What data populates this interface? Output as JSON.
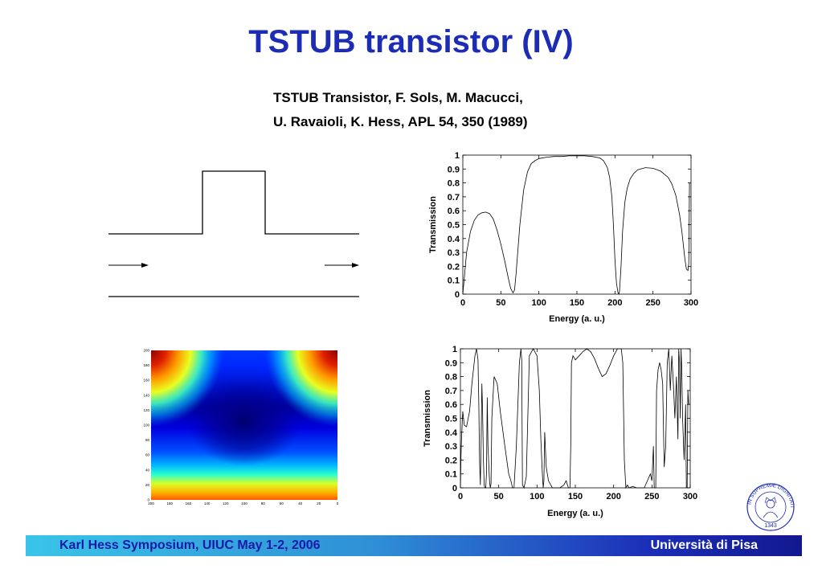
{
  "slide": {
    "title": "TSTUB transistor (IV)",
    "citation_line1": "TSTUB Transistor, F. Sols, M. Macucci,",
    "citation_line2": "U. Ravaioli, K. Hess, APL 54, 350 (1989)"
  },
  "chart_data": [
    {
      "type": "line",
      "title": "",
      "xlabel": "Energy  (a. u.)",
      "ylabel": "Transmission",
      "xlim": [
        0,
        300
      ],
      "ylim": [
        0,
        1
      ],
      "xticks": [
        "0",
        "50",
        "100",
        "150",
        "200",
        "250",
        "300"
      ],
      "yticks": [
        "0",
        "0.1",
        "0.2",
        "0.3",
        "0.4",
        "0.5",
        "0.6",
        "0.7",
        "0.8",
        "0.9",
        "1"
      ],
      "series": [
        {
          "x": [
            0,
            5,
            10,
            15,
            20,
            25,
            30,
            35,
            40,
            45,
            50,
            55,
            60,
            63,
            66,
            68,
            70,
            75,
            80,
            85,
            90,
            95,
            100,
            110,
            120,
            130,
            140,
            150,
            160,
            170,
            180,
            185,
            190,
            193,
            196,
            198,
            200,
            202,
            204,
            205,
            206,
            208,
            210,
            213,
            216,
            220,
            225,
            230,
            240,
            250,
            260,
            270,
            275,
            280,
            285,
            288,
            290,
            292,
            294,
            296,
            297,
            298
          ],
          "y": [
            0.0,
            0.3,
            0.45,
            0.53,
            0.57,
            0.585,
            0.59,
            0.58,
            0.54,
            0.46,
            0.36,
            0.24,
            0.11,
            0.04,
            0.01,
            0.03,
            0.15,
            0.5,
            0.75,
            0.88,
            0.94,
            0.96,
            0.975,
            0.985,
            0.99,
            0.99,
            0.995,
            0.995,
            0.995,
            0.99,
            0.98,
            0.96,
            0.91,
            0.84,
            0.7,
            0.5,
            0.25,
            0.08,
            0.01,
            0.0,
            0.02,
            0.2,
            0.45,
            0.66,
            0.76,
            0.83,
            0.87,
            0.895,
            0.91,
            0.905,
            0.885,
            0.84,
            0.79,
            0.71,
            0.57,
            0.45,
            0.35,
            0.25,
            0.18,
            0.17,
            0.22,
            0.8
          ]
        }
      ]
    },
    {
      "type": "line",
      "title": "",
      "xlabel": "Energy (a. u.)",
      "ylabel": "Transmission",
      "xlim": [
        0,
        300
      ],
      "ylim": [
        0,
        1
      ],
      "xticks": [
        "0",
        "50",
        "100",
        "150",
        "200",
        "250",
        "300"
      ],
      "yticks": [
        "0",
        "0.1",
        "0.2",
        "0.3",
        "0.4",
        "0.5",
        "0.6",
        "0.7",
        "0.8",
        "0.9",
        "1"
      ],
      "series": [
        {
          "x": [
            0,
            1,
            3,
            5,
            8,
            12,
            15,
            17,
            19,
            21,
            23,
            24,
            25,
            26,
            27,
            28,
            29,
            30,
            31,
            32,
            33,
            34,
            35,
            36,
            38,
            39,
            40,
            41,
            44,
            48,
            52,
            58,
            63,
            66,
            68,
            70,
            73,
            77,
            79,
            80,
            81,
            83,
            86,
            90,
            95,
            100,
            103,
            105,
            107,
            108,
            109,
            110,
            112,
            115,
            120,
            125,
            130,
            135,
            138,
            141,
            143,
            144,
            145,
            147,
            150,
            155,
            160,
            165,
            170,
            175,
            180,
            185,
            190,
            195,
            200,
            205,
            210,
            212,
            214,
            216,
            218,
            220,
            225,
            230,
            240,
            248,
            250,
            252,
            253,
            255,
            256,
            258,
            260,
            262,
            264,
            266,
            268,
            270,
            272,
            274,
            276,
            278,
            280,
            282,
            284,
            285,
            286,
            287,
            288,
            289,
            290,
            292,
            294,
            295,
            296,
            297,
            298
          ],
          "y": [
            0.0,
            0.3,
            0.55,
            0.45,
            0.44,
            0.55,
            0.75,
            0.85,
            0.95,
            1.0,
            0.92,
            0.6,
            0.2,
            0.02,
            0.3,
            0.75,
            0.55,
            0.2,
            0.02,
            0.0,
            0.0,
            0.1,
            0.65,
            0.3,
            0.05,
            0.0,
            0.03,
            0.5,
            0.8,
            0.75,
            0.55,
            0.3,
            0.1,
            0.05,
            0.0,
            0.0,
            0.3,
            0.9,
            1.0,
            0.92,
            0.02,
            0.0,
            0.08,
            0.95,
            1.0,
            0.95,
            0.7,
            0.35,
            0.1,
            0.0,
            0.05,
            0.4,
            0.15,
            0.05,
            0.0,
            0.0,
            0.0,
            0.02,
            0.05,
            0.0,
            0.0,
            0.3,
            0.9,
            0.95,
            0.92,
            0.95,
            0.98,
            1.0,
            0.98,
            0.93,
            0.86,
            0.8,
            0.82,
            0.88,
            0.95,
            1.0,
            1.0,
            0.9,
            0.2,
            0.0,
            0.02,
            0.0,
            0.01,
            0.0,
            0.0,
            0.1,
            0.05,
            0.3,
            0.0,
            0.0,
            0.7,
            0.85,
            0.9,
            0.85,
            0.75,
            0.15,
            0.3,
            0.9,
            1.0,
            0.7,
            0.95,
            0.75,
            0.5,
            0.8,
            0.35,
            1.0,
            0.9,
            0.5,
            1.0,
            0.85,
            0.5,
            0.2,
            0.6,
            0.0,
            0.0,
            0.7,
            0.6
          ]
        }
      ]
    },
    {
      "type": "heatmap",
      "title": "",
      "xticks": [
        "200",
        "180",
        "160",
        "140",
        "120",
        "100",
        "80",
        "60",
        "40",
        "20",
        "0"
      ],
      "yticks": [
        "0",
        "20",
        "40",
        "60",
        "80",
        "100",
        "120",
        "140",
        "160",
        "180",
        "200"
      ],
      "colormap": "jet"
    }
  ],
  "footer": {
    "left_text": "Karl Hess Symposium, UIUC May 1-2, 2006",
    "right_text": "Università di Pisa"
  },
  "logo": {
    "seal_text": "IN SUPREMÆ DIGNITATIS",
    "year": "1343"
  },
  "colors": {
    "title": "#1c2cb4",
    "footer_text_left": "#1a1aa8",
    "footer_text_right": "#ffffff"
  },
  "icons": [
    "right-arrow-icon",
    "university-seal-icon"
  ]
}
